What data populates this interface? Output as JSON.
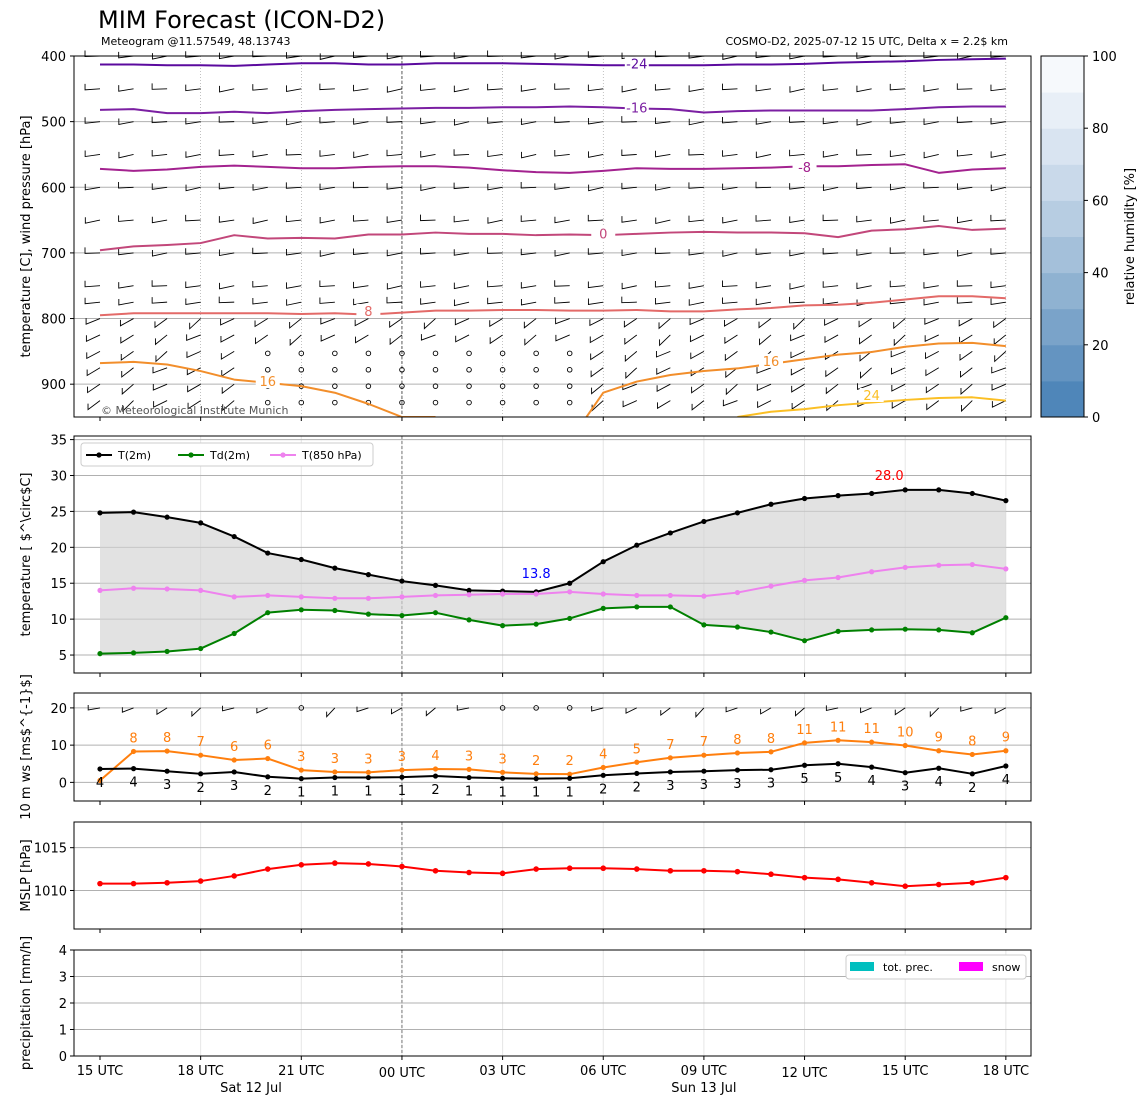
{
  "header": {
    "title": "MIM Forecast (ICON-D2)",
    "subtitle_left": "Meteogram @11.57549, 48.13743",
    "subtitle_right": "COSMO-D2, 2025-07-12 15 UTC, Delta x = 2.2$ km"
  },
  "colors": {
    "t2m": "#000000",
    "td2m": "#008000",
    "t850": "#ee82ee",
    "ws": "#ff7f0e",
    "mslp": "#ff0000",
    "precip": "#00bfbf",
    "snow": "#ff00ff",
    "max_label": "#ff0000",
    "min_label": "#0000ff"
  },
  "time_axis": {
    "hours_labeled": [
      "15 UTC",
      "18 UTC",
      "21 UTC",
      "00 UTC",
      "03 UTC",
      "06 UTC",
      "09 UTC",
      "12 UTC",
      "15 UTC",
      "18 UTC"
    ],
    "day_labels": [
      "Sat 12 Jul",
      "Sun 13 Jul"
    ]
  },
  "chart_data": [
    {
      "type": "line",
      "title": "",
      "ylabel": "temperature [C], wind pressure [hPa]",
      "ylim": [
        950,
        400
      ],
      "y_ticks": [
        "400",
        "500",
        "600",
        "700",
        "800",
        "900"
      ],
      "copyright": "© Meteorological Institute Munich",
      "contour_labels": [
        "-24",
        "-16",
        "-8",
        "0",
        "8",
        "16",
        "16",
        "24"
      ],
      "colorbar": {
        "label": "relative humidity [%]",
        "ticks": [
          "0",
          "20",
          "40",
          "60",
          "80",
          "100"
        ],
        "range": [
          0,
          100
        ]
      },
      "series": [
        {
          "name": "-24",
          "color": "#5b0a9e",
          "x": [
            0,
            1,
            2,
            3,
            4,
            5,
            6,
            7,
            8,
            9,
            10,
            11,
            12,
            13,
            14,
            15,
            16,
            17,
            18,
            19,
            20,
            21,
            22,
            23,
            24,
            25,
            26,
            27
          ],
          "values": [
            413,
            413,
            414,
            414,
            415,
            413,
            411,
            411,
            413,
            413,
            411,
            411,
            411,
            412,
            413,
            414,
            414,
            414,
            414,
            413,
            413,
            412,
            410,
            409,
            408,
            406,
            405,
            404
          ]
        },
        {
          "name": "-16",
          "color": "#7b1fa2",
          "x": [
            0,
            1,
            2,
            3,
            4,
            5,
            6,
            7,
            8,
            9,
            10,
            11,
            12,
            13,
            14,
            15,
            16,
            17,
            18,
            19,
            20,
            21,
            22,
            23,
            24,
            25,
            26,
            27
          ],
          "values": [
            482,
            481,
            487,
            487,
            485,
            487,
            484,
            482,
            481,
            480,
            479,
            479,
            478,
            478,
            477,
            478,
            480,
            481,
            486,
            484,
            483,
            483,
            483,
            483,
            481,
            478,
            477,
            477
          ]
        },
        {
          "name": "-8",
          "color": "#a3228f",
          "x": [
            0,
            1,
            2,
            3,
            4,
            5,
            6,
            7,
            8,
            9,
            10,
            11,
            12,
            13,
            14,
            15,
            16,
            17,
            18,
            19,
            20,
            21,
            22,
            23,
            24,
            25,
            26,
            27
          ],
          "values": [
            572,
            575,
            573,
            569,
            567,
            569,
            571,
            571,
            569,
            568,
            568,
            570,
            574,
            577,
            578,
            575,
            571,
            572,
            572,
            571,
            570,
            568,
            568,
            566,
            565,
            578,
            573,
            571
          ]
        },
        {
          "name": "0",
          "color": "#c2477a",
          "x": [
            0,
            1,
            2,
            3,
            4,
            5,
            6,
            7,
            8,
            9,
            10,
            11,
            12,
            13,
            14,
            15,
            16,
            17,
            18,
            19,
            20,
            21,
            22,
            23,
            24,
            25,
            26,
            27
          ],
          "values": [
            696,
            690,
            688,
            685,
            673,
            678,
            677,
            678,
            672,
            672,
            669,
            671,
            671,
            673,
            672,
            673,
            671,
            669,
            668,
            669,
            669,
            670,
            676,
            666,
            664,
            659,
            665,
            663
          ]
        },
        {
          "name": "8",
          "color": "#e36a68",
          "x": [
            0,
            1,
            2,
            3,
            4,
            5,
            6,
            7,
            8,
            9,
            10,
            11,
            12,
            13,
            14,
            15,
            16,
            17,
            18,
            19,
            20,
            21,
            22,
            23,
            24,
            25,
            26,
            27
          ],
          "values": [
            795,
            792,
            792,
            792,
            792,
            792,
            793,
            792,
            794,
            791,
            788,
            788,
            787,
            787,
            788,
            788,
            787,
            789,
            789,
            786,
            784,
            780,
            779,
            776,
            771,
            766,
            766,
            769
          ]
        },
        {
          "name": "16",
          "color": "#f28e2b",
          "x": [
            0,
            1,
            2,
            3,
            4,
            5,
            6,
            7,
            8,
            9,
            10
          ],
          "values": [
            868,
            866,
            870,
            880,
            893,
            898,
            903,
            913,
            930,
            950,
            950
          ]
        },
        {
          "name": "16",
          "color": "#f28e2b",
          "x": [
            14.5,
            15,
            16,
            17,
            18,
            19,
            20,
            21,
            22,
            23,
            24,
            25,
            26,
            27
          ],
          "values": [
            950,
            913,
            896,
            886,
            880,
            876,
            869,
            862,
            855,
            851,
            843,
            838,
            837,
            842
          ]
        },
        {
          "name": "24",
          "color": "#fbbf24",
          "x": [
            19,
            20,
            21,
            22,
            23,
            24,
            25,
            26,
            27
          ],
          "values": [
            950,
            942,
            938,
            932,
            928,
            924,
            921,
            920,
            925
          ]
        }
      ]
    },
    {
      "type": "line",
      "title": "",
      "ylabel": "temperature [ $^\\circ$C]",
      "ylim": [
        2.5,
        35.5
      ],
      "y_ticks": [
        "5",
        "10",
        "15",
        "20",
        "25",
        "30",
        "35"
      ],
      "x": [
        0,
        1,
        2,
        3,
        4,
        5,
        6,
        7,
        8,
        9,
        10,
        11,
        12,
        13,
        14,
        15,
        16,
        17,
        18,
        19,
        20,
        21,
        22,
        23,
        24,
        25,
        26,
        27
      ],
      "annotations": {
        "max": "28.0",
        "min": "13.8"
      },
      "series": [
        {
          "name": "T(2m)",
          "color": "#000000",
          "values": [
            24.8,
            24.9,
            24.2,
            23.4,
            21.5,
            19.2,
            18.3,
            17.1,
            16.2,
            15.3,
            14.7,
            14.0,
            13.9,
            13.8,
            15.0,
            18.0,
            20.3,
            22.0,
            23.6,
            24.8,
            26.0,
            26.8,
            27.2,
            27.5,
            28.0,
            28.0,
            27.5,
            26.5
          ]
        },
        {
          "name": "Td(2m)",
          "color": "#008000",
          "values": [
            5.2,
            5.3,
            5.5,
            5.9,
            8.0,
            10.9,
            11.3,
            11.2,
            10.7,
            10.5,
            10.9,
            9.9,
            9.1,
            9.3,
            10.1,
            11.5,
            11.7,
            11.7,
            9.2,
            8.9,
            8.2,
            7.0,
            8.3,
            8.5,
            8.6,
            8.5,
            8.1,
            10.2
          ]
        },
        {
          "name": "T(850 hPa)",
          "color": "#ee82ee",
          "values": [
            14.0,
            14.3,
            14.2,
            14.0,
            13.1,
            13.3,
            13.1,
            12.9,
            12.9,
            13.1,
            13.3,
            13.4,
            13.5,
            13.5,
            13.8,
            13.5,
            13.3,
            13.3,
            13.2,
            13.7,
            14.6,
            15.4,
            15.8,
            16.6,
            17.2,
            17.5,
            17.6,
            17.0
          ]
        }
      ]
    },
    {
      "type": "line",
      "title": "",
      "ylabel": "10 m ws [ms$^{-1}$]",
      "ylim": [
        -5,
        24
      ],
      "y_ticks": [
        "0",
        "10",
        "20"
      ],
      "x": [
        0,
        1,
        2,
        3,
        4,
        5,
        6,
        7,
        8,
        9,
        10,
        11,
        12,
        13,
        14,
        15,
        16,
        17,
        18,
        19,
        20,
        21,
        22,
        23,
        24,
        25,
        26,
        27
      ],
      "gust_labels": [
        "",
        "8",
        "8",
        "7",
        "6",
        "6",
        "3",
        "3",
        "3",
        "3",
        "4",
        "3",
        "3",
        "2",
        "2",
        "4",
        "5",
        "7",
        "7",
        "8",
        "8",
        "11",
        "11",
        "11",
        "10",
        "9",
        "8",
        "9"
      ],
      "mean_labels": [
        "4",
        "4",
        "3",
        "2",
        "3",
        "2",
        "1",
        "1",
        "1",
        "1",
        "2",
        "1",
        "1",
        "1",
        "1",
        "2",
        "2",
        "3",
        "3",
        "3",
        "3",
        "5",
        "5",
        "4",
        "3",
        "4",
        "2",
        "4"
      ],
      "series": [
        {
          "name": "gust",
          "color": "#ff7f0e",
          "values": [
            0.5,
            8.3,
            8.4,
            7.3,
            6.0,
            6.4,
            3.3,
            2.8,
            2.7,
            3.3,
            3.6,
            3.5,
            2.7,
            2.3,
            2.2,
            4.0,
            5.4,
            6.6,
            7.3,
            7.9,
            8.2,
            10.6,
            11.3,
            10.8,
            9.9,
            8.5,
            7.5,
            8.5
          ]
        },
        {
          "name": "mean",
          "color": "#000000",
          "values": [
            3.6,
            3.7,
            3.0,
            2.3,
            2.8,
            1.5,
            1.0,
            1.3,
            1.3,
            1.4,
            1.7,
            1.3,
            1.1,
            1.0,
            1.1,
            1.9,
            2.4,
            2.8,
            3.0,
            3.3,
            3.4,
            4.6,
            5.0,
            4.1,
            2.6,
            3.8,
            2.3,
            4.4
          ]
        }
      ]
    },
    {
      "type": "line",
      "title": "",
      "ylabel": "MSLP [hPa]",
      "ylim": [
        1005.5,
        1018.0
      ],
      "y_ticks": [
        "1010",
        "1015"
      ],
      "x": [
        0,
        1,
        2,
        3,
        4,
        5,
        6,
        7,
        8,
        9,
        10,
        11,
        12,
        13,
        14,
        15,
        16,
        17,
        18,
        19,
        20,
        21,
        22,
        23,
        24,
        25,
        26,
        27
      ],
      "series": [
        {
          "name": "MSLP",
          "color": "#ff0000",
          "values": [
            1010.8,
            1010.8,
            1010.9,
            1011.1,
            1011.7,
            1012.5,
            1013.0,
            1013.2,
            1013.1,
            1012.8,
            1012.3,
            1012.1,
            1012.0,
            1012.5,
            1012.6,
            1012.6,
            1012.5,
            1012.3,
            1012.3,
            1012.2,
            1011.9,
            1011.5,
            1011.3,
            1010.9,
            1010.5,
            1010.7,
            1010.9,
            1011.5
          ]
        }
      ]
    },
    {
      "type": "bar",
      "title": "",
      "ylabel": "precipitation [mm/h]",
      "ylim": [
        0,
        4
      ],
      "y_ticks": [
        "0",
        "1",
        "2",
        "3",
        "4"
      ],
      "legend": [
        "tot. prec.",
        "snow"
      ],
      "legend_position": "top-right",
      "x": [
        0,
        1,
        2,
        3,
        4,
        5,
        6,
        7,
        8,
        9,
        10,
        11,
        12,
        13,
        14,
        15,
        16,
        17,
        18,
        19,
        20,
        21,
        22,
        23,
        24,
        25,
        26,
        27
      ],
      "series": [
        {
          "name": "tot. prec.",
          "values": [
            0,
            0,
            0,
            0,
            0,
            0,
            0,
            0,
            0,
            0,
            0,
            0,
            0,
            0,
            0,
            0,
            0,
            0,
            0,
            0,
            0,
            0,
            0,
            0,
            0,
            0,
            0,
            0
          ]
        },
        {
          "name": "snow",
          "values": [
            0,
            0,
            0,
            0,
            0,
            0,
            0,
            0,
            0,
            0,
            0,
            0,
            0,
            0,
            0,
            0,
            0,
            0,
            0,
            0,
            0,
            0,
            0,
            0,
            0,
            0,
            0,
            0
          ]
        }
      ]
    }
  ]
}
